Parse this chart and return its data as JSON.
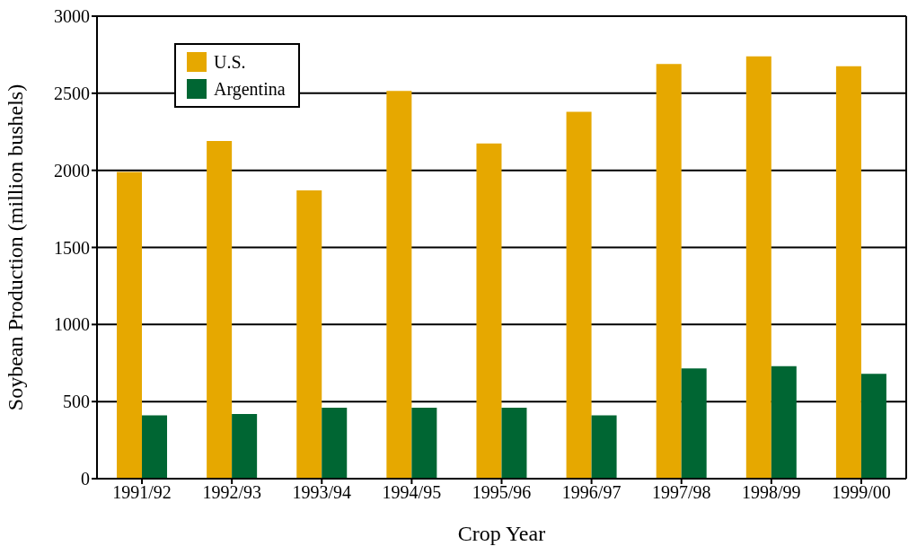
{
  "chart_data": {
    "type": "bar",
    "xlabel": "Crop Year",
    "ylabel": "Soybean Production (million bushels)",
    "categories": [
      "1991/92",
      "1992/93",
      "1993/94",
      "1994/95",
      "1995/96",
      "1996/97",
      "1997/98",
      "1998/99",
      "1999/00"
    ],
    "series": [
      {
        "name": "U.S.",
        "color": "#e6a800",
        "values": [
          1990,
          2190,
          1870,
          2515,
          2175,
          2380,
          2690,
          2740,
          2675
        ]
      },
      {
        "name": "Argentina",
        "color": "#006633",
        "values": [
          410,
          420,
          460,
          460,
          460,
          410,
          715,
          730,
          680
        ]
      }
    ],
    "ylim": [
      0,
      3000
    ],
    "yticks": [
      0,
      500,
      1000,
      1500,
      2000,
      2500,
      3000
    ],
    "grid": "y",
    "legend": "top left"
  }
}
